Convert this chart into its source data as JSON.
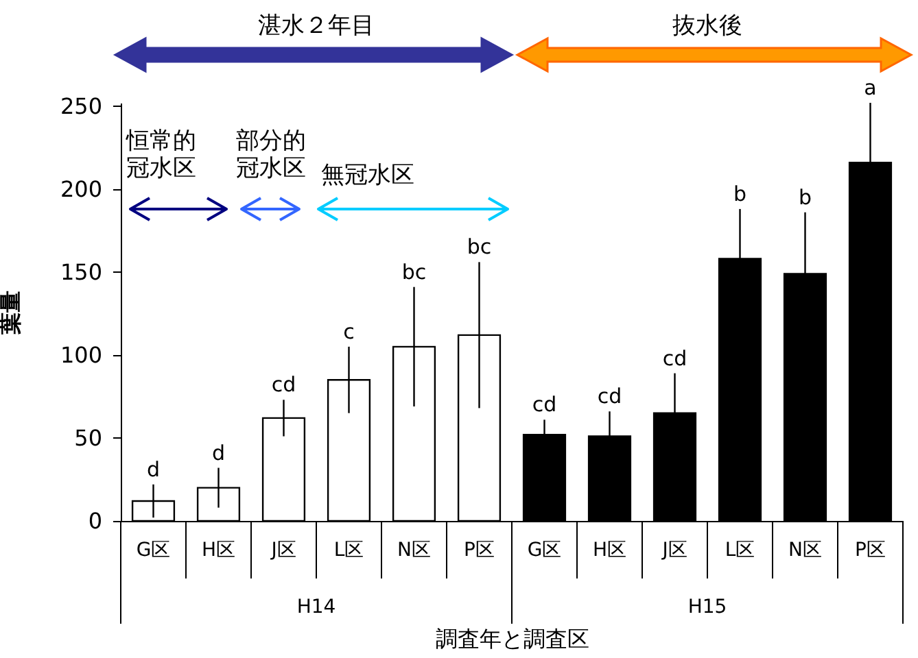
{
  "chart_data": {
    "type": "bar",
    "categories": [
      "G区",
      "H区",
      "J区",
      "L区",
      "N区",
      "P区",
      "G区",
      "H区",
      "J区",
      "L区",
      "N区",
      "P区"
    ],
    "values": [
      12,
      20,
      62,
      85,
      105,
      112,
      52,
      51,
      65,
      158,
      149,
      216
    ],
    "colors": [
      "#ffffff",
      "#ffffff",
      "#ffffff",
      "#ffffff",
      "#ffffff",
      "#ffffff",
      "#000000",
      "#000000",
      "#000000",
      "#000000",
      "#000000",
      "#000000"
    ],
    "errors": [
      10,
      12,
      11,
      20,
      36,
      44,
      [
        52,
        61
      ],
      [
        51,
        66
      ],
      [
        65,
        89
      ],
      [
        158,
        188
      ],
      [
        149,
        186
      ],
      [
        216,
        252
      ]
    ],
    "xlabel": "調査年と調査区",
    "ylabel": "葉量",
    "ylim": [
      0,
      252
    ],
    "yticks": [
      0,
      50,
      100,
      150,
      200,
      250
    ],
    "grid": false,
    "annotations": [
      "d",
      "d",
      "cd",
      "c",
      "bc",
      "bc",
      "cd",
      "cd",
      "cd",
      "b",
      "b",
      "a",
      "湛水２年目",
      "抜水後",
      "恒常的冠水区",
      "部分的冠水区",
      "無冠水区",
      "H14",
      "H15"
    ]
  }
}
